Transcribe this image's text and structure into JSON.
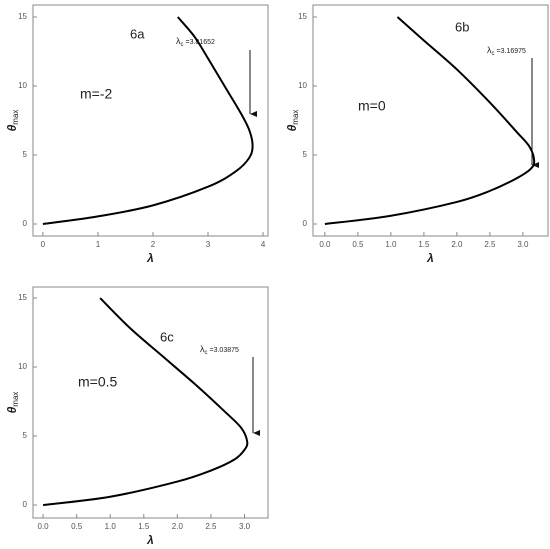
{
  "chart_data": [
    {
      "type": "line",
      "panel_label": "6a",
      "param_label": "m=-2",
      "x_label": "λ",
      "y_label_symbol": "θ",
      "y_label_sub": "max",
      "critical_symbol": "λ",
      "critical_sub": "c",
      "critical_text": "=3.81652",
      "x": [
        0,
        1,
        2,
        3,
        3.5,
        3.75,
        3.81,
        3.75,
        3.6,
        3.3,
        3.0,
        2.75,
        2.45
      ],
      "values": [
        0,
        0.55,
        1.35,
        2.7,
        3.8,
        4.8,
        5.7,
        6.8,
        8,
        10,
        12,
        13.6,
        15
      ],
      "xlim": [
        -0.18,
        4.09
      ],
      "ylim": [
        -0.87,
        15.87
      ],
      "xticks": [
        0,
        1,
        2,
        3,
        4
      ],
      "yticks": [
        0,
        5,
        10,
        15
      ],
      "color": "#000000"
    },
    {
      "type": "line",
      "panel_label": "6b",
      "param_label": "m=0",
      "x_label": "λ",
      "y_label_symbol": "θ",
      "y_label_sub": "max",
      "critical_symbol": "λ",
      "critical_sub": "c",
      "critical_text": "=3.16975",
      "x": [
        0,
        1,
        2,
        2.5,
        2.9,
        3.12,
        3.17,
        3.1,
        2.9,
        2.5,
        2.0,
        1.5,
        1.1
      ],
      "values": [
        0,
        0.6,
        1.6,
        2.4,
        3.3,
        4.0,
        4.6,
        5.6,
        6.7,
        8.8,
        11.2,
        13.3,
        15
      ],
      "xlim": [
        -0.18,
        3.38
      ],
      "ylim": [
        -0.87,
        15.87
      ],
      "xticks": [
        {
          "value": 0,
          "label": "0.0"
        },
        0.5,
        {
          "value": 1,
          "label": "1.0"
        },
        1.5,
        {
          "value": 2,
          "label": "2.0"
        },
        2.5,
        {
          "value": 3,
          "label": "3.0"
        }
      ],
      "yticks": [
        0,
        5,
        10,
        15
      ],
      "color": "#000000"
    },
    {
      "type": "line",
      "panel_label": "6c",
      "param_label": "m=0.5",
      "x_label": "λ",
      "y_label_symbol": "θ",
      "y_label_sub": "max",
      "critical_symbol": "λ",
      "critical_sub": "c",
      "critical_text": "=3.03875",
      "x": [
        0,
        1,
        2,
        2.5,
        2.85,
        3.0,
        3.04,
        2.95,
        2.7,
        2.3,
        1.8,
        1.3,
        0.85
      ],
      "values": [
        0,
        0.6,
        1.7,
        2.5,
        3.3,
        4.0,
        4.6,
        5.6,
        6.8,
        8.6,
        10.7,
        12.8,
        15
      ],
      "xlim": [
        -0.15,
        3.35
      ],
      "ylim": [
        -0.94,
        15.8
      ],
      "xticks": [
        {
          "value": 0,
          "label": "0.0"
        },
        0.5,
        {
          "value": 1,
          "label": "1.0"
        },
        1.5,
        {
          "value": 2,
          "label": "2.0"
        },
        2.5,
        {
          "value": 3,
          "label": "3.0"
        }
      ],
      "yticks": [
        0,
        5,
        10,
        15
      ],
      "color": "#000000"
    }
  ]
}
